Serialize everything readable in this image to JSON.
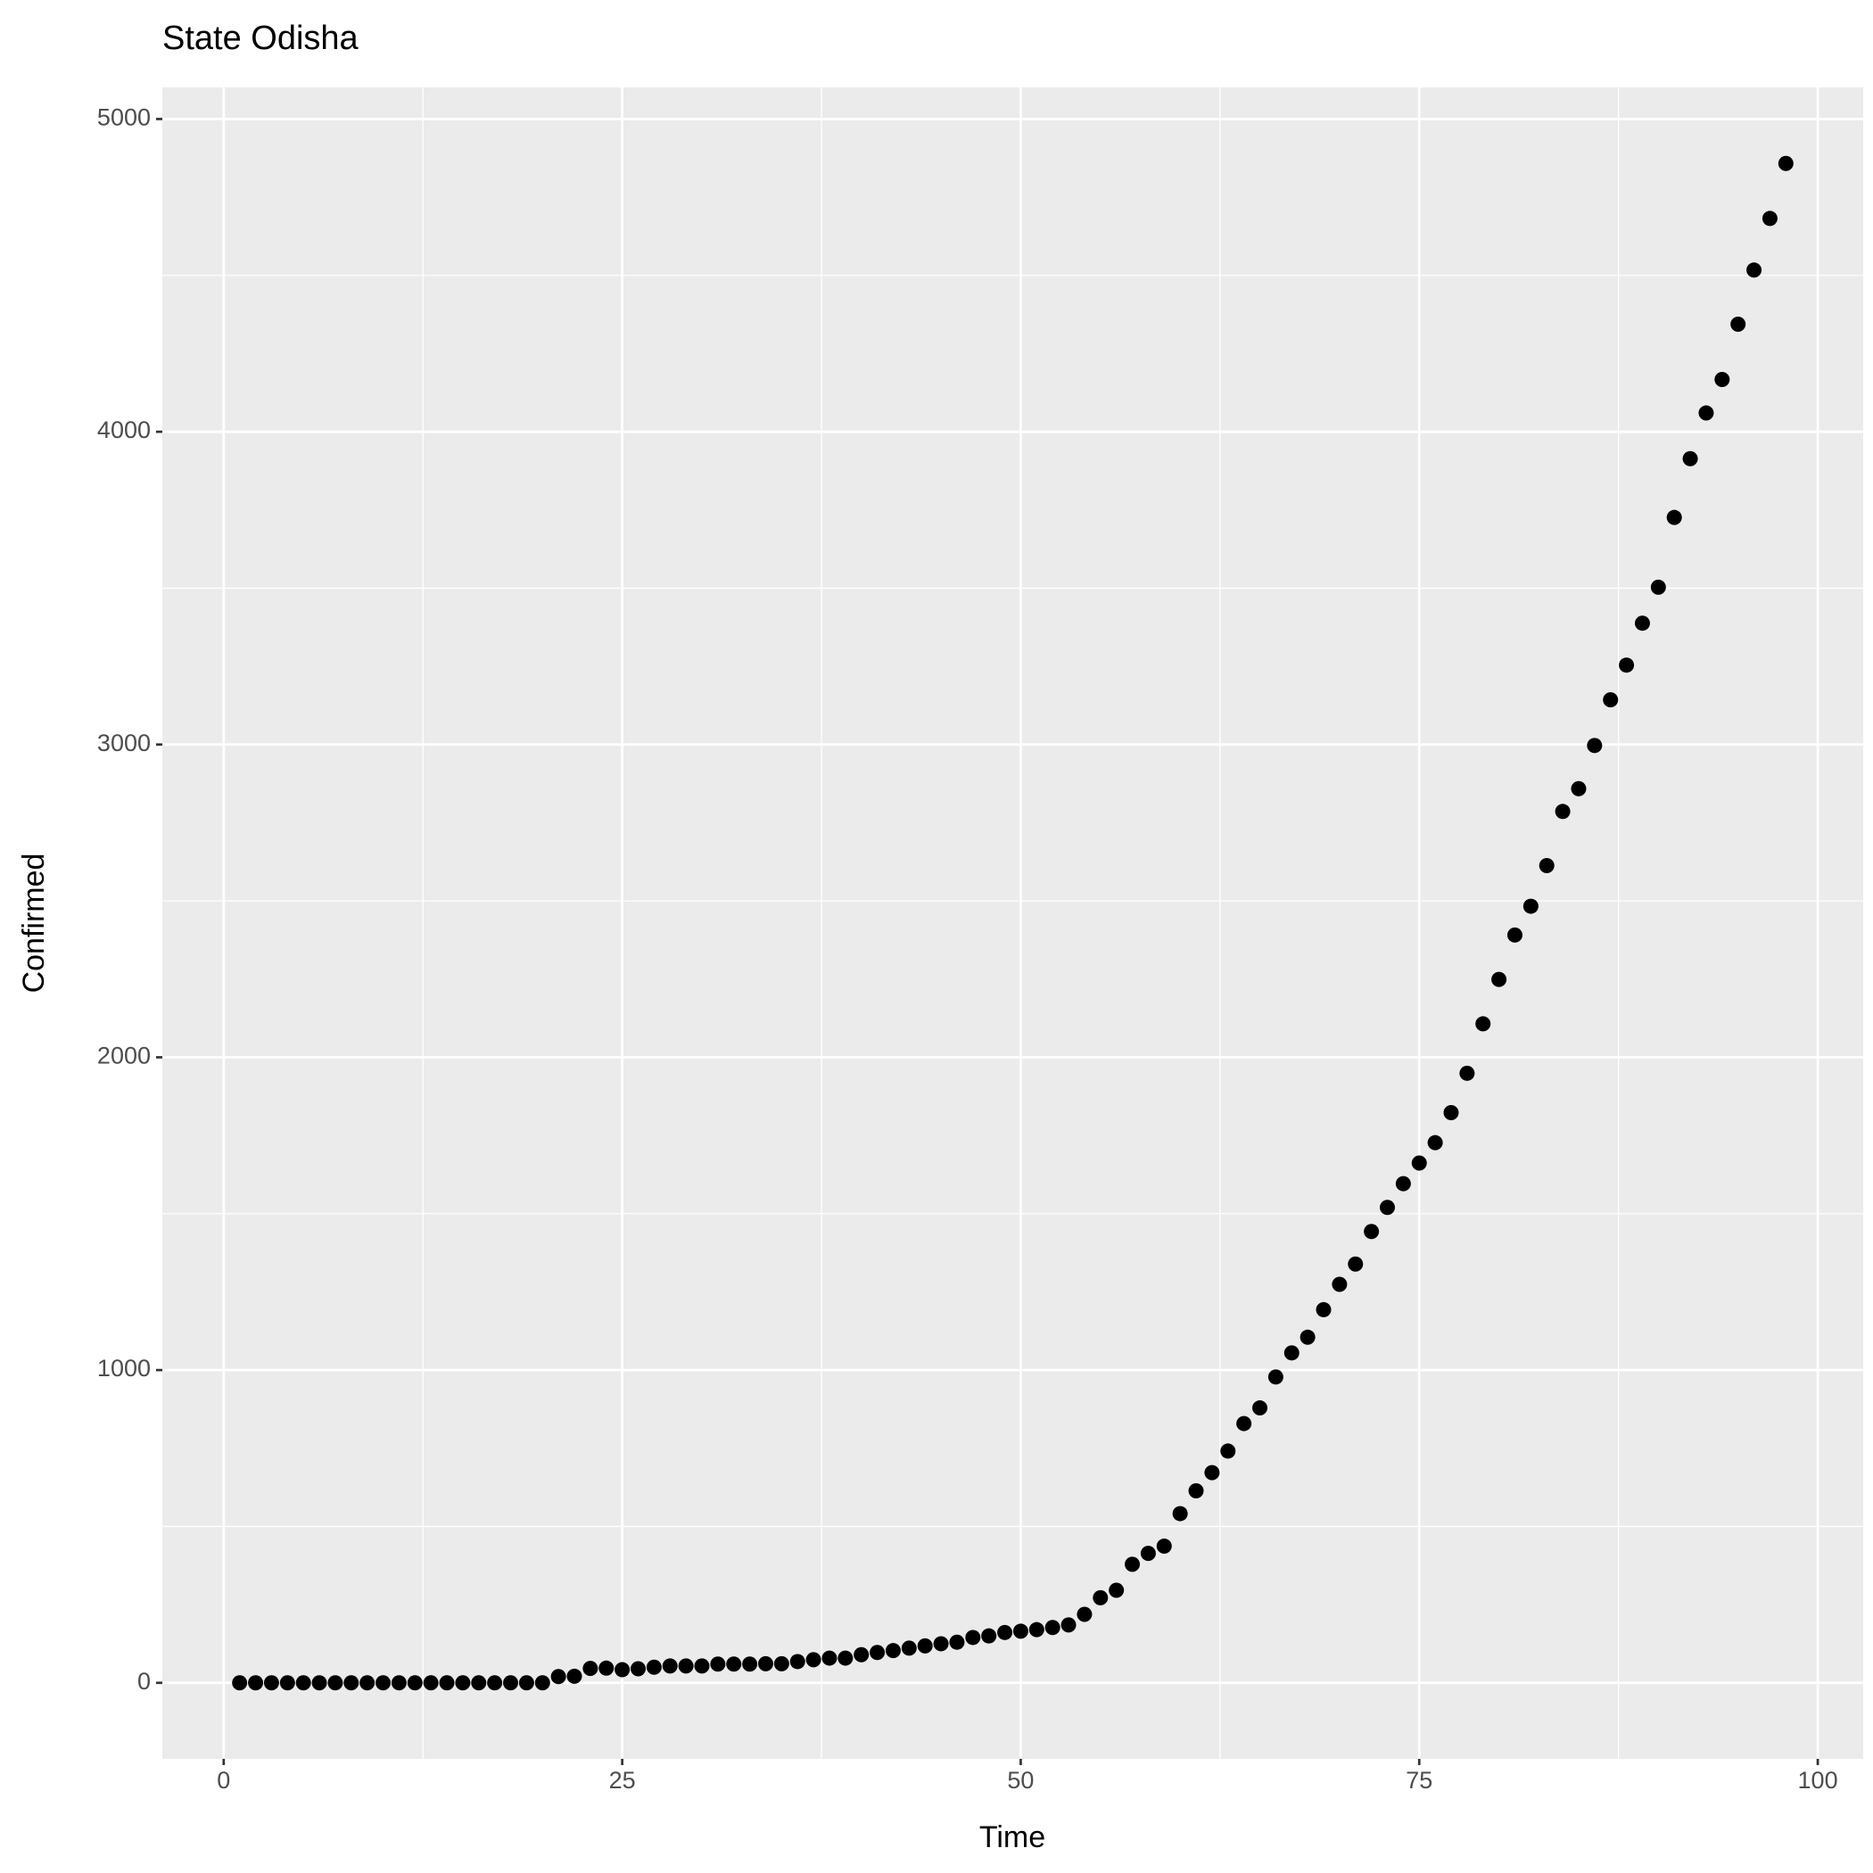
{
  "chart_data": {
    "type": "scatter",
    "title": "State Odisha",
    "x_label": "Time",
    "y_label": "Confirmed",
    "x": [
      1,
      2,
      3,
      4,
      5,
      6,
      7,
      8,
      9,
      10,
      11,
      12,
      13,
      14,
      15,
      16,
      17,
      18,
      19,
      20,
      21,
      22,
      23,
      24,
      25,
      26,
      27,
      28,
      29,
      30,
      31,
      32,
      33,
      34,
      35,
      36,
      37,
      38,
      39,
      40,
      41,
      42,
      43,
      44,
      45,
      46,
      47,
      48,
      49,
      50,
      51,
      52,
      53,
      54,
      55,
      56,
      57,
      58,
      59,
      60,
      61,
      62,
      63,
      64,
      65,
      66,
      67,
      68,
      69,
      70,
      71,
      72,
      73,
      74,
      75,
      76,
      77,
      78,
      79,
      80,
      81,
      82,
      83,
      84,
      85,
      86,
      87,
      88,
      89,
      90,
      91,
      92,
      93,
      94,
      95,
      96,
      97,
      98
    ],
    "series": [
      {
        "name": "Confirmed",
        "color": "#000000",
        "values": [
          0,
          0,
          0,
          0,
          0,
          0,
          0,
          0,
          0,
          0,
          0,
          0,
          0,
          0,
          0,
          0,
          0,
          0,
          0,
          0,
          20,
          21,
          46,
          47,
          42,
          45,
          50,
          54,
          54,
          54,
          60,
          60,
          60,
          61,
          61,
          68,
          74,
          79,
          79,
          90,
          97,
          103,
          111,
          118,
          125,
          130,
          145,
          150,
          161,
          165,
          170,
          177,
          185,
          219,
          272,
          296,
          379,
          414,
          437,
          541,
          614,
          672,
          741,
          829,
          879,
          978,
          1055,
          1105,
          1193,
          1274,
          1339,
          1443,
          1520,
          1596,
          1662,
          1727,
          1823,
          1949,
          2107,
          2249,
          2391,
          2483,
          2613,
          2786,
          2859,
          2997,
          3143,
          3254,
          3388,
          3503,
          3726,
          3914,
          4060,
          4167,
          4344,
          4517,
          4682,
          4858
        ]
      }
    ],
    "xlim": [
      -3.85,
      102.85
    ],
    "xticks": [
      0,
      25,
      50,
      75,
      100
    ],
    "ylim": [
      -243,
      5101
    ],
    "yticks": [
      0,
      1000,
      2000,
      3000,
      4000,
      5000
    ],
    "grid": true
  }
}
